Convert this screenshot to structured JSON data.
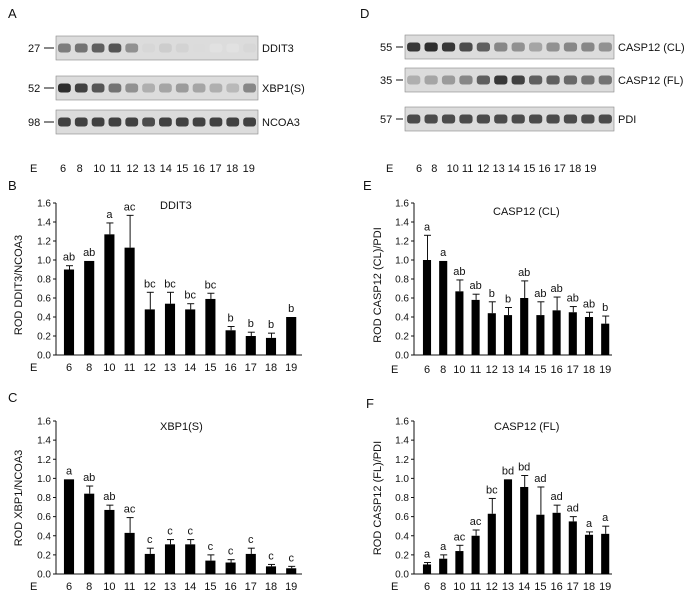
{
  "blots": [
    {
      "panel_letter": "A",
      "lanes_prefix": "E",
      "lanes": [
        "6",
        "8",
        "10",
        "11",
        "12",
        "13",
        "14",
        "15",
        "16",
        "17",
        "18",
        "19"
      ],
      "rows": [
        {
          "mw": "27",
          "label": "DDIT3",
          "intensity": [
            0.55,
            0.6,
            0.7,
            0.75,
            0.45,
            0.1,
            0.15,
            0.12,
            0.08,
            0.05,
            0.05,
            0.1
          ]
        },
        {
          "mw": "52",
          "label": "XBP1(S)",
          "intensity": [
            0.95,
            0.85,
            0.75,
            0.6,
            0.45,
            0.3,
            0.35,
            0.4,
            0.35,
            0.3,
            0.25,
            0.5
          ]
        },
        {
          "mw": "98",
          "label": "NCOA3",
          "intensity": [
            0.85,
            0.85,
            0.85,
            0.85,
            0.85,
            0.8,
            0.85,
            0.85,
            0.85,
            0.85,
            0.85,
            0.85
          ]
        }
      ]
    },
    {
      "panel_letter": "D",
      "lanes_prefix": "E",
      "lanes": [
        "6",
        "8",
        "10",
        "11",
        "12",
        "13",
        "14",
        "15",
        "16",
        "17",
        "18",
        "19"
      ],
      "rows": [
        {
          "mw": "55",
          "label": "CASP12 (CL)",
          "intensity": [
            0.9,
            0.95,
            0.9,
            0.8,
            0.7,
            0.5,
            0.45,
            0.35,
            0.45,
            0.5,
            0.5,
            0.45
          ]
        },
        {
          "mw": "35",
          "label": "CASP12 (FL)",
          "intensity": [
            0.3,
            0.35,
            0.4,
            0.5,
            0.7,
            0.9,
            0.85,
            0.7,
            0.7,
            0.65,
            0.6,
            0.6
          ]
        },
        {
          "mw": "57",
          "label": "PDI",
          "intensity": [
            0.8,
            0.8,
            0.8,
            0.8,
            0.8,
            0.8,
            0.8,
            0.8,
            0.8,
            0.8,
            0.8,
            0.8
          ]
        }
      ]
    }
  ],
  "chart_data": [
    {
      "panel_letter": "B",
      "type": "bar",
      "title": "DDIT3",
      "ylabel": "ROD DDIT3/NCOA3",
      "x_prefix": "E",
      "ylim": [
        0,
        1.6
      ],
      "yticks": [
        "0.0",
        "0.2",
        "0.4",
        "0.6",
        "0.8",
        "1.0",
        "1.2",
        "1.4",
        "1.6"
      ],
      "categories": [
        "6",
        "8",
        "10",
        "11",
        "12",
        "13",
        "14",
        "15",
        "16",
        "17",
        "18",
        "19"
      ],
      "values": [
        0.9,
        0.99,
        1.27,
        1.13,
        0.48,
        0.54,
        0.48,
        0.59,
        0.26,
        0.2,
        0.18,
        0.4
      ],
      "errors": [
        0.04,
        0.0,
        0.12,
        0.34,
        0.18,
        0.12,
        0.06,
        0.06,
        0.04,
        0.04,
        0.05,
        0.0
      ],
      "labels": [
        "ab",
        "ab",
        "a",
        "ac",
        "bc",
        "bc",
        "bc",
        "bc",
        "b",
        "b",
        "b",
        "b"
      ],
      "grid": false
    },
    {
      "panel_letter": "C",
      "type": "bar",
      "title": "XBP1(S)",
      "ylabel": "ROD XBP1/NCOA3",
      "x_prefix": "E",
      "ylim": [
        0,
        1.6
      ],
      "yticks": [
        "0.0",
        "0.2",
        "0.4",
        "0.6",
        "0.8",
        "1.0",
        "1.2",
        "1.4",
        "1.6"
      ],
      "categories": [
        "6",
        "8",
        "10",
        "11",
        "12",
        "13",
        "14",
        "15",
        "16",
        "17",
        "18",
        "19"
      ],
      "values": [
        0.99,
        0.84,
        0.67,
        0.43,
        0.21,
        0.31,
        0.31,
        0.14,
        0.12,
        0.21,
        0.08,
        0.06
      ],
      "errors": [
        0.0,
        0.08,
        0.05,
        0.16,
        0.06,
        0.05,
        0.05,
        0.06,
        0.03,
        0.06,
        0.02,
        0.02
      ],
      "labels": [
        "a",
        "ab",
        "ab",
        "ac",
        "c",
        "c",
        "c",
        "c",
        "c",
        "c",
        "c",
        "c"
      ],
      "grid": false
    },
    {
      "panel_letter": "E",
      "type": "bar",
      "title": "CASP12 (CL)",
      "ylabel": "ROD CASP12 (CL)/PDI",
      "x_prefix": "E",
      "ylim": [
        0,
        1.6
      ],
      "yticks": [
        "0.0",
        "0.2",
        "0.4",
        "0.6",
        "0.8",
        "1.0",
        "1.2",
        "1.4",
        "1.6"
      ],
      "categories": [
        "6",
        "8",
        "10",
        "11",
        "12",
        "13",
        "14",
        "15",
        "16",
        "17",
        "18",
        "19"
      ],
      "values": [
        1.0,
        0.99,
        0.67,
        0.58,
        0.44,
        0.42,
        0.6,
        0.42,
        0.47,
        0.45,
        0.4,
        0.33
      ],
      "errors": [
        0.26,
        0.0,
        0.12,
        0.06,
        0.12,
        0.08,
        0.18,
        0.14,
        0.14,
        0.06,
        0.05,
        0.08
      ],
      "labels": [
        "a",
        "a",
        "ab",
        "ab",
        "b",
        "b",
        "ab",
        "ab",
        "ab",
        "ab",
        "ab",
        "b"
      ],
      "grid": false
    },
    {
      "panel_letter": "F",
      "type": "bar",
      "title": "CASP12 (FL)",
      "ylabel": "ROD CASP12 (FL)/PDI",
      "x_prefix": "E",
      "ylim": [
        0,
        1.6
      ],
      "yticks": [
        "0.0",
        "0.2",
        "0.4",
        "0.6",
        "0.8",
        "1.0",
        "1.2",
        "1.4",
        "1.6"
      ],
      "categories": [
        "6",
        "8",
        "10",
        "11",
        "12",
        "13",
        "14",
        "15",
        "16",
        "17",
        "18",
        "19"
      ],
      "values": [
        0.1,
        0.16,
        0.24,
        0.4,
        0.63,
        0.99,
        0.91,
        0.62,
        0.64,
        0.55,
        0.41,
        0.42
      ],
      "errors": [
        0.02,
        0.04,
        0.06,
        0.06,
        0.16,
        0.0,
        0.12,
        0.29,
        0.08,
        0.05,
        0.03,
        0.08
      ],
      "labels": [
        "a",
        "a",
        "ac",
        "ac",
        "bc",
        "bd",
        "bd",
        "ad",
        "ad",
        "ad",
        "a",
        "a"
      ],
      "grid": false
    }
  ]
}
